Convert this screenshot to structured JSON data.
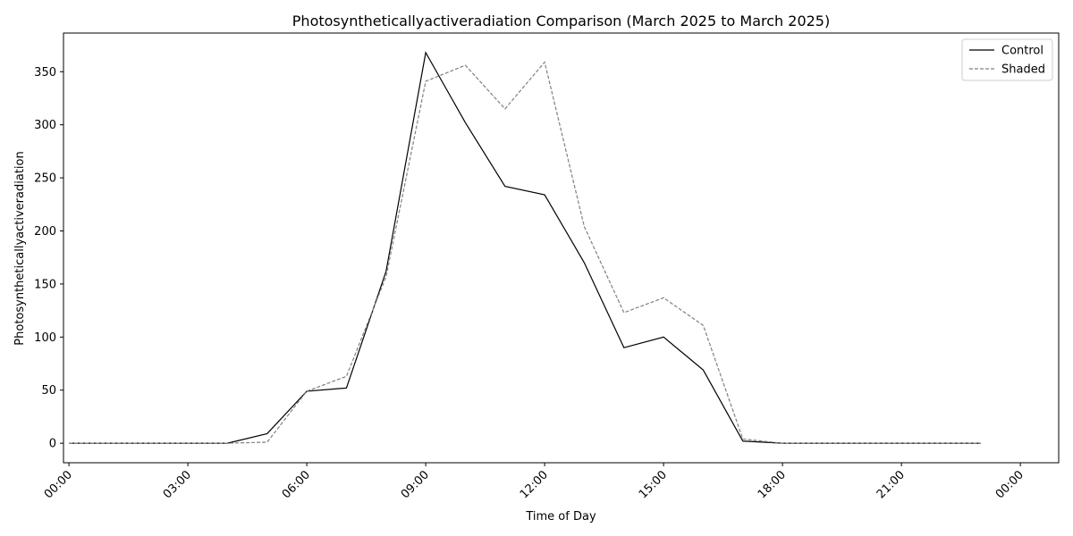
{
  "chart_data": {
    "type": "line",
    "title": "Photosyntheticallyactiveradiation Comparison (March 2025 to March 2025)",
    "xlabel": "Time of Day",
    "ylabel": "Photosyntheticallyactiveradiation",
    "x": [
      "00:00",
      "01:00",
      "02:00",
      "03:00",
      "04:00",
      "05:00",
      "06:00",
      "07:00",
      "08:00",
      "09:00",
      "10:00",
      "11:00",
      "12:00",
      "13:00",
      "14:00",
      "15:00",
      "16:00",
      "17:00",
      "18:00",
      "19:00",
      "20:00",
      "21:00",
      "22:00",
      "23:00"
    ],
    "series": [
      {
        "name": "Control",
        "color": "#000000",
        "style": "solid",
        "values": [
          0,
          0,
          0,
          0,
          0,
          9,
          49,
          52,
          162,
          368,
          302,
          242,
          234,
          170,
          90,
          100,
          69,
          2,
          0,
          0,
          0,
          0,
          0,
          0
        ]
      },
      {
        "name": "Shaded",
        "color": "#808080",
        "style": "dashed",
        "values": [
          0,
          0,
          0,
          0,
          0,
          1,
          49,
          63,
          157,
          341,
          356,
          315,
          359,
          204,
          123,
          137,
          111,
          4,
          0,
          0,
          0,
          0,
          0,
          0
        ]
      }
    ],
    "xticks": [
      "00:00",
      "03:00",
      "06:00",
      "09:00",
      "12:00",
      "15:00",
      "18:00",
      "21:00",
      "00:00"
    ],
    "xlim": [
      "23:52 (previous day)",
      "00:58 (next day)"
    ],
    "yticks": [
      0,
      50,
      100,
      150,
      200,
      250,
      300,
      350
    ],
    "ylim": [
      -18.4,
      386.4
    ],
    "grid": false,
    "legend_position": "top-right"
  }
}
